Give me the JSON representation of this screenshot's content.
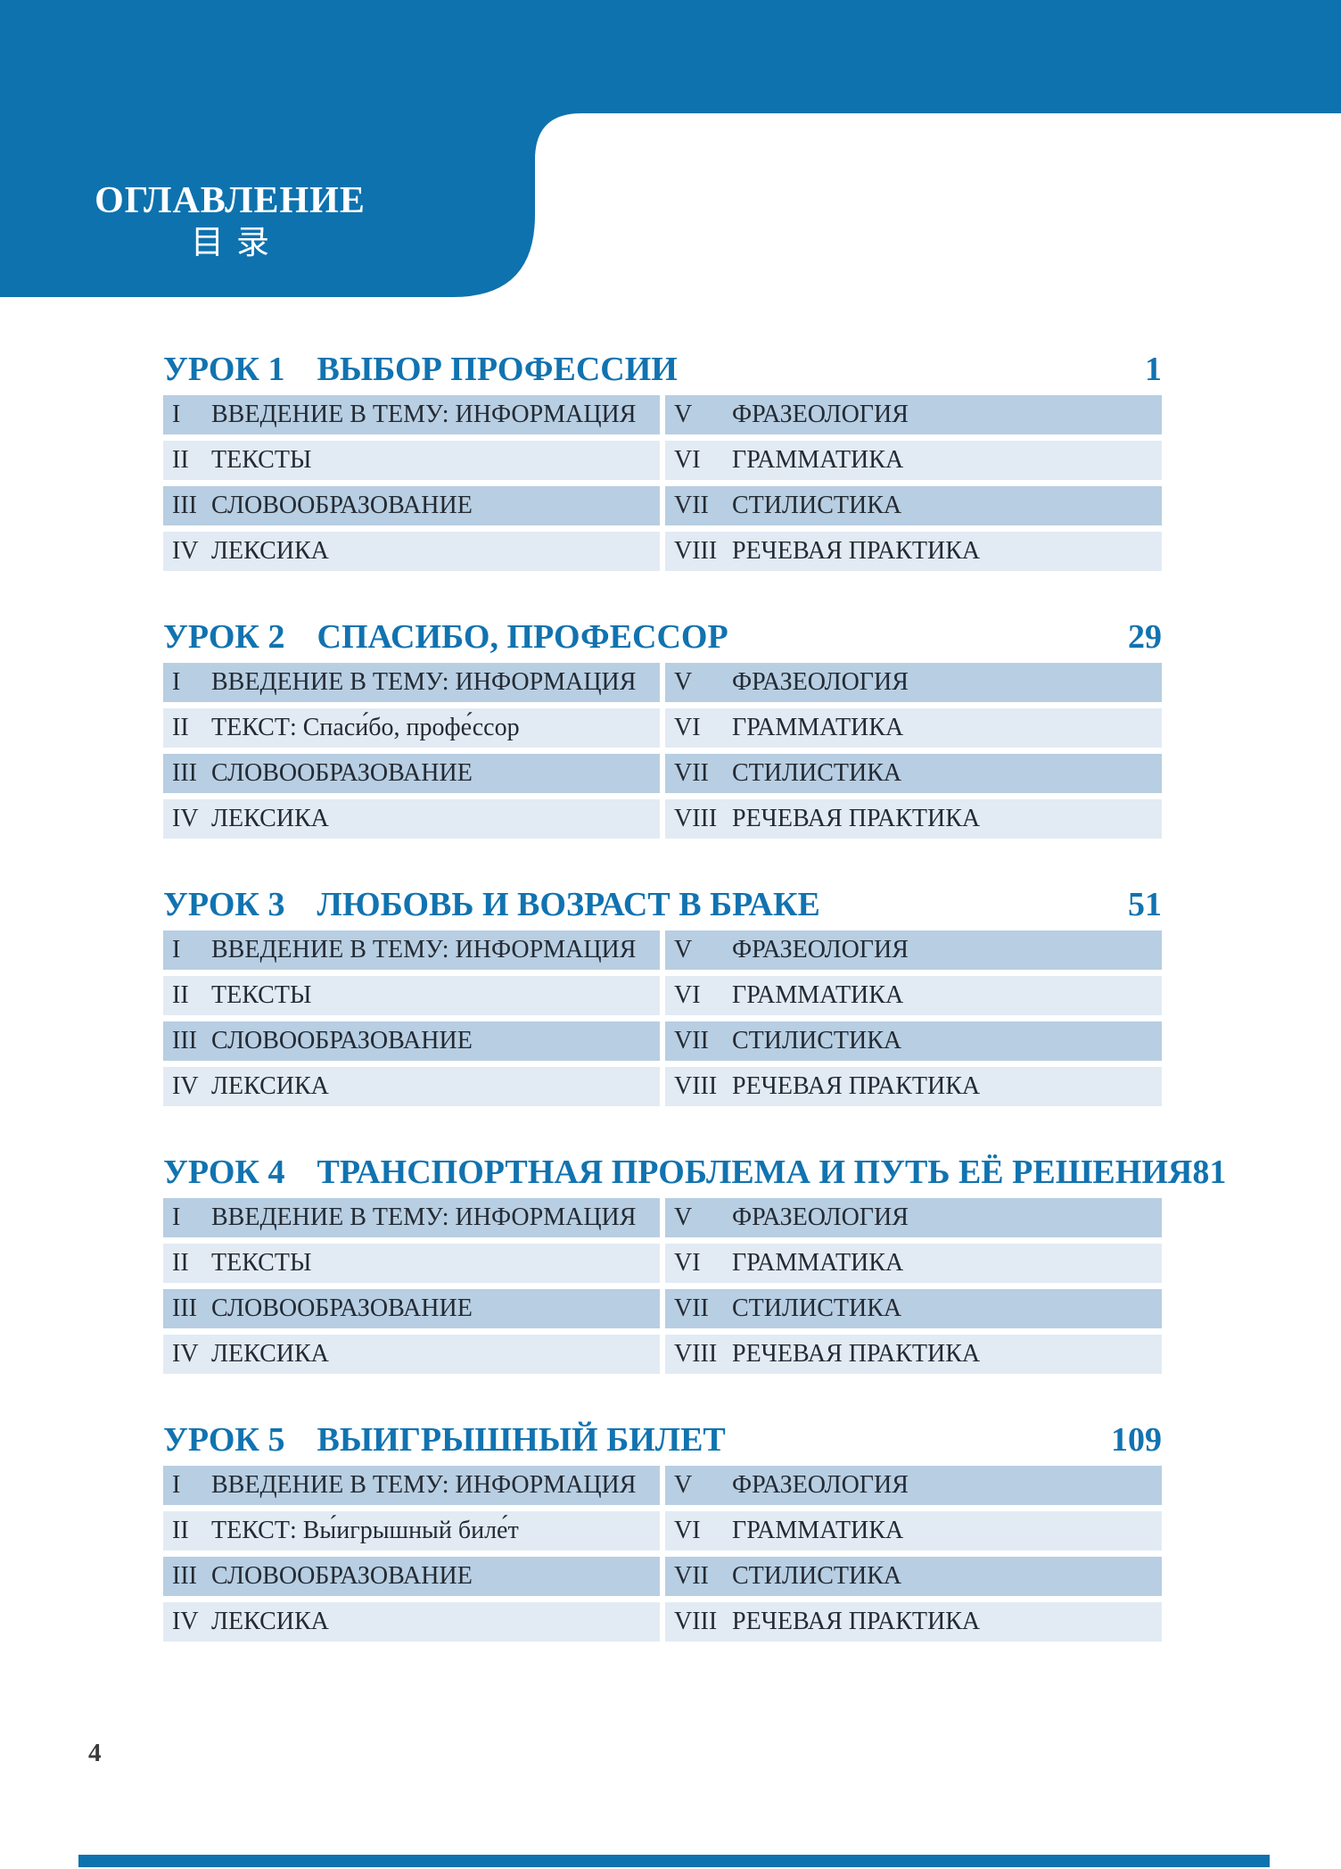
{
  "header": {
    "title_ru": "ОГЛАВЛЕНИЕ",
    "title_zh": "目录"
  },
  "lessons": [
    {
      "lesson": "УРОК 1",
      "title": "ВЫБОР ПРОФЕССИИ",
      "page": "1",
      "left_rows": [
        {
          "num": "I",
          "label": "ВВЕДЕНИЕ В ТЕМУ: ИНФОРМАЦИЯ"
        },
        {
          "num": "II",
          "label": "ТЕКСТЫ"
        },
        {
          "num": "III",
          "label": "СЛОВООБРАЗОВАНИЕ"
        },
        {
          "num": "IV",
          "label": "ЛЕКСИКА"
        }
      ],
      "right_rows": [
        {
          "num": "V",
          "label": "ФРАЗЕОЛОГИЯ"
        },
        {
          "num": "VI",
          "label": "ГРАММАТИКА"
        },
        {
          "num": "VII",
          "label": "СТИЛИСТИКА"
        },
        {
          "num": "VIII",
          "label": "РЕЧЕВАЯ ПРАКТИКА"
        }
      ]
    },
    {
      "lesson": "УРОК 2",
      "title": "СПАСИБО, ПРОФЕССОР",
      "page": "29",
      "left_rows": [
        {
          "num": "I",
          "label": "ВВЕДЕНИЕ В ТЕМУ: ИНФОРМАЦИЯ"
        },
        {
          "num": "II",
          "label": "ТЕКСТ: Спаси́бо, профе́ссор"
        },
        {
          "num": "III",
          "label": "СЛОВООБРАЗОВАНИЕ"
        },
        {
          "num": "IV",
          "label": "ЛЕКСИКА"
        }
      ],
      "right_rows": [
        {
          "num": "V",
          "label": "ФРАЗЕОЛОГИЯ"
        },
        {
          "num": "VI",
          "label": "ГРАММАТИКА"
        },
        {
          "num": "VII",
          "label": "СТИЛИСТИКА"
        },
        {
          "num": "VIII",
          "label": "РЕЧЕВАЯ ПРАКТИКА"
        }
      ]
    },
    {
      "lesson": "УРОК 3",
      "title": "ЛЮБОВЬ И ВОЗРАСТ В БРАКЕ",
      "page": "51",
      "left_rows": [
        {
          "num": "I",
          "label": "ВВЕДЕНИЕ В ТЕМУ: ИНФОРМАЦИЯ"
        },
        {
          "num": "II",
          "label": "ТЕКСТЫ"
        },
        {
          "num": "III",
          "label": "СЛОВООБРАЗОВАНИЕ"
        },
        {
          "num": "IV",
          "label": "ЛЕКСИКА"
        }
      ],
      "right_rows": [
        {
          "num": "V",
          "label": "ФРАЗЕОЛОГИЯ"
        },
        {
          "num": "VI",
          "label": "ГРАММАТИКА"
        },
        {
          "num": "VII",
          "label": "СТИЛИСТИКА"
        },
        {
          "num": "VIII",
          "label": "РЕЧЕВАЯ ПРАКТИКА"
        }
      ]
    },
    {
      "lesson": "УРОК 4",
      "title": "ТРАНСПОРТНАЯ ПРОБЛЕМА И ПУТЬ ЕЁ РЕШЕНИЯ",
      "page": "81",
      "left_rows": [
        {
          "num": "I",
          "label": "ВВЕДЕНИЕ В ТЕМУ: ИНФОРМАЦИЯ"
        },
        {
          "num": "II",
          "label": "ТЕКСТЫ"
        },
        {
          "num": "III",
          "label": "СЛОВООБРАЗОВАНИЕ"
        },
        {
          "num": "IV",
          "label": "ЛЕКСИКА"
        }
      ],
      "right_rows": [
        {
          "num": "V",
          "label": "ФРАЗЕОЛОГИЯ"
        },
        {
          "num": "VI",
          "label": "ГРАММАТИКА"
        },
        {
          "num": "VII",
          "label": "СТИЛИСТИКА"
        },
        {
          "num": "VIII",
          "label": "РЕЧЕВАЯ ПРАКТИКА"
        }
      ]
    },
    {
      "lesson": "УРОК 5",
      "title": "ВЫИГРЫШНЫЙ БИЛЕТ",
      "page": "109",
      "left_rows": [
        {
          "num": "I",
          "label": "ВВЕДЕНИЕ В ТЕМУ: ИНФОРМАЦИЯ"
        },
        {
          "num": "II",
          "label": "ТЕКСТ: Вы́игрышный биле́т"
        },
        {
          "num": "III",
          "label": "СЛОВООБРАЗОВАНИЕ"
        },
        {
          "num": "IV",
          "label": "ЛЕКСИКА"
        }
      ],
      "right_rows": [
        {
          "num": "V",
          "label": "ФРАЗЕОЛОГИЯ"
        },
        {
          "num": "VI",
          "label": "ГРАММАТИКА"
        },
        {
          "num": "VII",
          "label": "СТИЛИСТИКА"
        },
        {
          "num": "VIII",
          "label": "РЕЧЕВАЯ ПРАКТИКА"
        }
      ]
    }
  ],
  "footer": {
    "page_number": "4"
  },
  "colors": {
    "banner_blue": "#0e72ae",
    "heading_blue": "#1173b0",
    "row_dark": "#b8cee2",
    "row_light": "#e2ebf4",
    "row_text": "#232a33"
  }
}
